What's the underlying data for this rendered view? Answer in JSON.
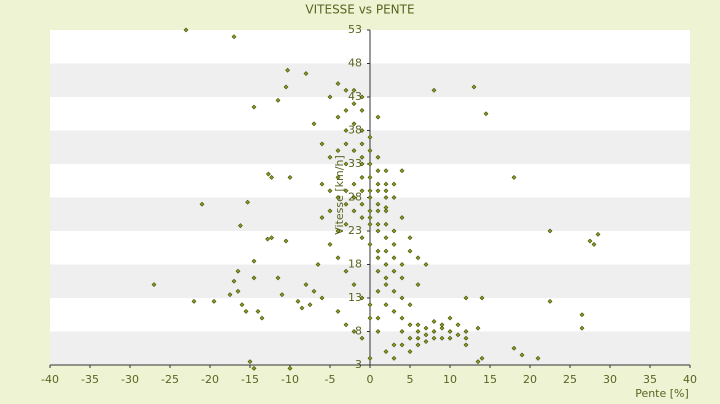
{
  "chart_data": {
    "type": "scatter",
    "title": "VITESSE vs PENTE",
    "x_label": "Pente [%]",
    "y_label": "Vitesse [km/h]",
    "xlim": [
      -40,
      40
    ],
    "ylim": [
      3,
      53
    ],
    "xticks": [
      -40,
      -35,
      -30,
      -25,
      -20,
      -15,
      -10,
      -5,
      0,
      5,
      10,
      15,
      20,
      25,
      30,
      35,
      40
    ],
    "yticks": [
      3,
      8,
      13,
      18,
      23,
      28,
      33,
      38,
      43,
      48,
      53
    ],
    "color": "#8c9c1c",
    "x": [
      -23,
      -17,
      -10.3,
      -8,
      -11.5,
      -14.5,
      -10.5,
      8,
      13,
      14.5,
      18,
      -12.7,
      -12.3,
      -10,
      -21,
      -15.3,
      -16.2,
      -12.8,
      -12.3,
      -10.5,
      22.5,
      27.5,
      28,
      28.5,
      -14.5,
      -16.5,
      -14.5,
      -17,
      -17.5,
      -16.5,
      -11.5,
      -27,
      -22,
      -19.5,
      -15.5,
      -16,
      -14,
      -13.5,
      -11,
      -9,
      -8.5,
      -7.5,
      -7,
      -6,
      -8,
      -6.5,
      -15,
      -14.5,
      -10,
      22.5,
      26.5,
      26.5,
      21,
      19,
      18,
      14,
      13.5,
      12,
      13.5,
      14,
      12,
      -3,
      -4,
      -5,
      -2,
      -3,
      -4,
      -1,
      -2,
      -3,
      -1,
      0,
      -1,
      -2,
      -3,
      0,
      1,
      -1,
      0,
      1,
      2,
      -1,
      0,
      1,
      2,
      -2,
      0,
      1,
      -1,
      2,
      0,
      1,
      -1,
      3,
      0,
      1,
      2,
      -1,
      0,
      1,
      2,
      -2,
      -3,
      -4,
      -5,
      -4,
      -5,
      -6,
      -7,
      -4,
      -3,
      0,
      1,
      2,
      3,
      -1,
      0,
      1,
      2,
      3,
      4,
      2,
      1,
      3,
      4,
      2,
      1,
      3,
      4,
      2,
      3,
      4,
      5,
      1,
      0,
      -1,
      -2,
      -3,
      -4,
      -5,
      -4,
      -3,
      -5,
      -6,
      -6,
      1,
      2,
      3,
      5,
      4,
      5,
      6,
      7,
      6,
      5,
      4,
      3,
      2,
      3,
      0,
      1,
      0,
      -1,
      -2,
      -3,
      -4,
      5,
      6,
      7,
      8,
      9,
      10,
      11,
      12,
      6,
      7,
      8,
      9,
      10,
      11,
      6,
      8,
      9,
      12,
      4,
      5,
      6,
      7,
      10,
      3,
      4,
      -1,
      -2,
      1,
      2,
      2,
      -2,
      -3,
      -1
    ],
    "values": [
      53,
      52,
      47,
      46.5,
      42.5,
      41.5,
      44.5,
      44,
      44.5,
      40.5,
      31,
      31.5,
      31,
      31,
      27,
      27.3,
      23.8,
      21.8,
      22,
      21.5,
      23,
      21.5,
      21,
      22.5,
      18.5,
      17,
      16,
      15.5,
      13.5,
      14,
      16,
      15,
      12.5,
      12.5,
      11,
      12,
      11,
      10,
      13.5,
      12.5,
      11.5,
      12,
      14,
      13,
      15,
      18,
      3.5,
      2.5,
      2.5,
      12.5,
      10.5,
      8.5,
      4,
      4.5,
      5.5,
      4,
      3.5,
      6,
      8.5,
      13,
      13,
      44,
      45,
      43,
      42,
      41,
      40,
      43,
      39,
      38,
      38,
      37,
      36,
      35,
      36,
      35,
      34,
      33,
      33,
      32,
      32,
      31,
      31,
      30,
      30,
      30,
      29,
      29,
      29,
      28,
      28,
      27,
      27,
      28,
      26,
      26,
      26,
      25,
      25,
      24,
      24,
      26,
      27,
      28,
      29,
      31,
      34,
      36,
      39,
      35,
      33,
      24,
      23,
      22,
      23,
      22,
      21,
      20,
      20,
      19,
      18,
      18,
      17,
      17,
      16,
      15,
      14,
      14,
      13,
      12,
      11,
      10,
      9,
      10,
      12,
      13,
      15,
      17,
      19,
      21,
      23,
      24,
      26,
      25,
      30,
      19,
      16,
      21,
      22,
      25,
      20,
      19,
      18,
      15,
      12,
      8,
      6,
      5,
      4,
      4,
      8,
      10,
      7,
      8,
      9,
      11,
      7,
      8,
      7.5,
      8,
      7,
      8,
      7.5,
      8,
      7,
      8.5,
      7,
      8.5,
      7,
      9,
      9,
      9.5,
      9,
      7,
      6,
      5,
      6,
      6.5,
      10,
      30,
      32,
      41,
      44,
      40,
      26.5,
      29,
      28,
      29,
      34
    ]
  }
}
